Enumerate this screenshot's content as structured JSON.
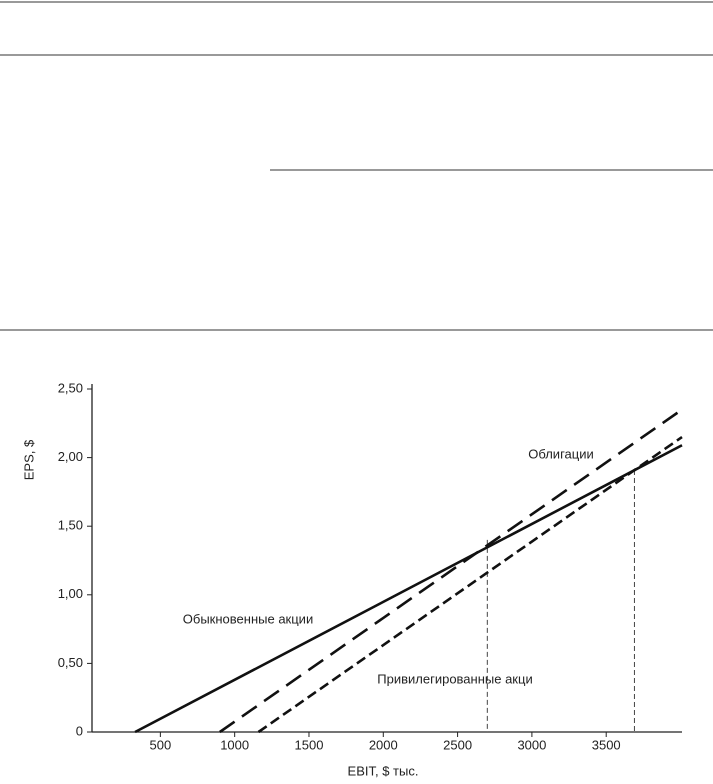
{
  "chart_data": {
    "type": "line",
    "x_label": "EBIT, $ тыс.",
    "y_label": "EPS, $",
    "series": [
      {
        "name": "Обыкновенные акции",
        "color": "#111111",
        "dash": "solid",
        "x": [
          330,
          4010
        ],
        "values": [
          0,
          2.09
        ]
      },
      {
        "name": "Облигации",
        "color": "#111111",
        "dash": "long",
        "x": [
          900,
          4010
        ],
        "values": [
          0,
          2.35
        ]
      },
      {
        "name": "Привилегированные акци",
        "color": "#111111",
        "dash": "short",
        "x": [
          1160,
          4010
        ],
        "values": [
          0,
          2.15
        ]
      }
    ],
    "vlines": [
      {
        "x": 2700,
        "y": 1.4
      },
      {
        "x": 3690,
        "y": 1.91
      }
    ],
    "xlim": [
      40,
      4010
    ],
    "xticks": [
      500,
      1000,
      1500,
      2000,
      2500,
      3000,
      3500
    ],
    "ylim": [
      0,
      2.5
    ],
    "yticks": [
      {
        "value": 0,
        "label": "0"
      },
      {
        "value": 0.5,
        "label": "0,50"
      },
      {
        "value": 1,
        "label": "1,00"
      },
      {
        "value": 1.5,
        "label": "1,50"
      },
      {
        "value": 2,
        "label": "2,00"
      },
      {
        "value": 2.5,
        "label": "2,50"
      }
    ]
  }
}
